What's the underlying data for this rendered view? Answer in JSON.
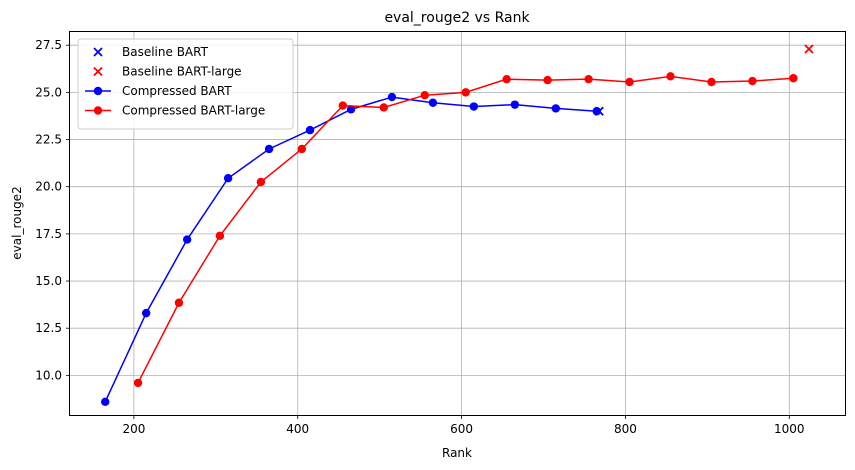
{
  "chart_data": {
    "type": "line",
    "title": "eval_rouge2 vs Rank",
    "xlabel": "Rank",
    "ylabel": "eval_rouge2",
    "xlim": [
      122,
      1068
    ],
    "ylim": [
      7.9,
      28.2
    ],
    "xticks": [
      200,
      400,
      600,
      800,
      1000
    ],
    "yticks": [
      10.0,
      12.5,
      15.0,
      17.5,
      20.0,
      22.5,
      25.0,
      27.5
    ],
    "grid": true,
    "legend_position": "top-left",
    "series": [
      {
        "name": "Baseline BART",
        "kind": "scatter",
        "marker": "x",
        "color": "#0000ff",
        "points": [
          [
            768,
            24.0
          ]
        ]
      },
      {
        "name": "Baseline BART-large",
        "kind": "scatter",
        "marker": "x",
        "color": "#ff0000",
        "points": [
          [
            1024,
            27.3
          ]
        ]
      },
      {
        "name": "Compressed BART",
        "kind": "line",
        "marker": "o",
        "color": "#0000ff",
        "points": [
          [
            165,
            8.6
          ],
          [
            215,
            13.3
          ],
          [
            265,
            17.2
          ],
          [
            315,
            20.45
          ],
          [
            365,
            22.0
          ],
          [
            415,
            23.0
          ],
          [
            465,
            24.1
          ],
          [
            515,
            24.75
          ],
          [
            565,
            24.45
          ],
          [
            615,
            24.25
          ],
          [
            665,
            24.35
          ],
          [
            715,
            24.15
          ],
          [
            765,
            24.0
          ]
        ]
      },
      {
        "name": "Compressed BART-large",
        "kind": "line",
        "marker": "o",
        "color": "#ff0000",
        "points": [
          [
            205,
            9.6
          ],
          [
            255,
            13.85
          ],
          [
            305,
            17.4
          ],
          [
            355,
            20.25
          ],
          [
            405,
            22.0
          ],
          [
            455,
            24.3
          ],
          [
            505,
            24.2
          ],
          [
            555,
            24.85
          ],
          [
            605,
            25.0
          ],
          [
            655,
            25.7
          ],
          [
            705,
            25.65
          ],
          [
            755,
            25.7
          ],
          [
            805,
            25.55
          ],
          [
            855,
            25.85
          ],
          [
            905,
            25.55
          ],
          [
            955,
            25.6
          ],
          [
            1005,
            25.75
          ]
        ]
      }
    ]
  }
}
